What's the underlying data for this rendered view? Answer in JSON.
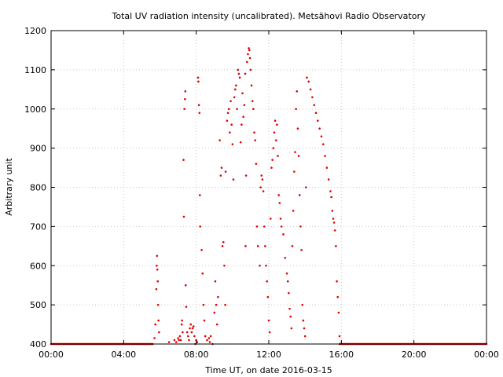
{
  "chart_data": {
    "type": "scatter",
    "title": "Total UV radiation intensity (uncalibrated). Metsähovi Radio Observatory",
    "xlabel": "Time UT, on date 2016-03-15",
    "ylabel": "Arbitrary unit",
    "xlim": [
      0,
      24
    ],
    "ylim": [
      400,
      1200
    ],
    "x_ticks": [
      0,
      4,
      8,
      12,
      16,
      20,
      24
    ],
    "x_tick_labels": [
      "00:00",
      "04:00",
      "08:00",
      "12:00",
      "16:00",
      "20:00",
      "00:00"
    ],
    "y_ticks": [
      400,
      500,
      600,
      700,
      800,
      900,
      1000,
      1100,
      1200
    ],
    "y_tick_labels": [
      "400",
      "500",
      "600",
      "700",
      "800",
      "900",
      "1000",
      "1100",
      "1200"
    ],
    "grid": true,
    "marker_color": "#e00000",
    "series": [
      {
        "points": [
          [
            0.0,
            400
          ],
          [
            5.6,
            400
          ],
          [
            15.9,
            400
          ],
          [
            24.0,
            400
          ],
          [
            5.7,
            415
          ],
          [
            5.75,
            450
          ],
          [
            5.8,
            540
          ],
          [
            5.82,
            600
          ],
          [
            5.84,
            625
          ],
          [
            5.86,
            590
          ],
          [
            5.88,
            560
          ],
          [
            5.9,
            500
          ],
          [
            5.92,
            460
          ],
          [
            5.95,
            430
          ],
          [
            6.5,
            405
          ],
          [
            6.8,
            410
          ],
          [
            6.9,
            405
          ],
          [
            7.0,
            415
          ],
          [
            7.05,
            410
          ],
          [
            7.1,
            420
          ],
          [
            7.15,
            410
          ],
          [
            7.2,
            450
          ],
          [
            7.22,
            460
          ],
          [
            7.25,
            430
          ],
          [
            7.3,
            870
          ],
          [
            7.32,
            725
          ],
          [
            7.35,
            1000
          ],
          [
            7.38,
            1025
          ],
          [
            7.4,
            1045
          ],
          [
            7.42,
            550
          ],
          [
            7.45,
            495
          ],
          [
            7.5,
            430
          ],
          [
            7.55,
            420
          ],
          [
            7.6,
            410
          ],
          [
            7.65,
            440
          ],
          [
            7.7,
            450
          ],
          [
            7.75,
            430
          ],
          [
            7.8,
            440
          ],
          [
            7.85,
            445
          ],
          [
            7.9,
            420
          ],
          [
            7.95,
            400
          ],
          [
            8.0,
            410
          ],
          [
            8.05,
            405
          ],
          [
            8.1,
            1080
          ],
          [
            8.12,
            1070
          ],
          [
            8.15,
            1010
          ],
          [
            8.18,
            990
          ],
          [
            8.2,
            780
          ],
          [
            8.22,
            700
          ],
          [
            8.3,
            640
          ],
          [
            8.35,
            580
          ],
          [
            8.4,
            500
          ],
          [
            8.45,
            460
          ],
          [
            8.5,
            420
          ],
          [
            8.6,
            410
          ],
          [
            8.7,
            415
          ],
          [
            8.75,
            405
          ],
          [
            8.8,
            420
          ],
          [
            8.9,
            400
          ],
          [
            9.0,
            480
          ],
          [
            9.05,
            560
          ],
          [
            9.1,
            500
          ],
          [
            9.15,
            450
          ],
          [
            9.2,
            520
          ],
          [
            9.3,
            920
          ],
          [
            9.35,
            830
          ],
          [
            9.4,
            850
          ],
          [
            9.45,
            650
          ],
          [
            9.5,
            660
          ],
          [
            9.55,
            600
          ],
          [
            9.6,
            500
          ],
          [
            9.62,
            840
          ],
          [
            9.7,
            970
          ],
          [
            9.75,
            990
          ],
          [
            9.8,
            1000
          ],
          [
            9.85,
            940
          ],
          [
            9.9,
            1020
          ],
          [
            9.95,
            960
          ],
          [
            10.0,
            910
          ],
          [
            10.05,
            820
          ],
          [
            10.1,
            1030
          ],
          [
            10.15,
            1050
          ],
          [
            10.2,
            1060
          ],
          [
            10.25,
            1000
          ],
          [
            10.3,
            1100
          ],
          [
            10.35,
            1090
          ],
          [
            10.4,
            1080
          ],
          [
            10.45,
            915
          ],
          [
            10.5,
            960
          ],
          [
            10.55,
            1040
          ],
          [
            10.6,
            980
          ],
          [
            10.65,
            1010
          ],
          [
            10.7,
            1090
          ],
          [
            10.72,
            650
          ],
          [
            10.75,
            830
          ],
          [
            10.8,
            1120
          ],
          [
            10.85,
            1140
          ],
          [
            10.9,
            1155
          ],
          [
            10.93,
            1150
          ],
          [
            10.96,
            1130
          ],
          [
            11.0,
            1100
          ],
          [
            11.05,
            1060
          ],
          [
            11.1,
            1020
          ],
          [
            11.15,
            1000
          ],
          [
            11.2,
            940
          ],
          [
            11.25,
            920
          ],
          [
            11.3,
            860
          ],
          [
            11.35,
            700
          ],
          [
            11.4,
            650
          ],
          [
            11.5,
            600
          ],
          [
            11.55,
            800
          ],
          [
            11.6,
            830
          ],
          [
            11.65,
            820
          ],
          [
            11.7,
            790
          ],
          [
            11.75,
            700
          ],
          [
            11.8,
            650
          ],
          [
            11.85,
            600
          ],
          [
            11.9,
            560
          ],
          [
            11.95,
            520
          ],
          [
            12.0,
            460
          ],
          [
            12.05,
            430
          ],
          [
            12.1,
            720
          ],
          [
            12.15,
            850
          ],
          [
            12.2,
            870
          ],
          [
            12.25,
            900
          ],
          [
            12.3,
            940
          ],
          [
            12.35,
            970
          ],
          [
            12.4,
            920
          ],
          [
            12.45,
            960
          ],
          [
            12.5,
            880
          ],
          [
            12.55,
            780
          ],
          [
            12.6,
            760
          ],
          [
            12.65,
            720
          ],
          [
            12.7,
            700
          ],
          [
            12.8,
            680
          ],
          [
            12.9,
            620
          ],
          [
            13.0,
            580
          ],
          [
            13.05,
            560
          ],
          [
            13.1,
            530
          ],
          [
            13.15,
            490
          ],
          [
            13.2,
            470
          ],
          [
            13.25,
            440
          ],
          [
            13.3,
            650
          ],
          [
            13.35,
            740
          ],
          [
            13.4,
            840
          ],
          [
            13.45,
            890
          ],
          [
            13.5,
            1000
          ],
          [
            13.55,
            1045
          ],
          [
            13.6,
            950
          ],
          [
            13.65,
            880
          ],
          [
            13.7,
            780
          ],
          [
            13.75,
            700
          ],
          [
            13.8,
            640
          ],
          [
            13.85,
            500
          ],
          [
            13.9,
            460
          ],
          [
            13.95,
            440
          ],
          [
            14.0,
            420
          ],
          [
            14.05,
            800
          ],
          [
            14.1,
            1080
          ],
          [
            14.2,
            1070
          ],
          [
            14.3,
            1050
          ],
          [
            14.4,
            1030
          ],
          [
            14.5,
            1010
          ],
          [
            14.6,
            990
          ],
          [
            14.7,
            970
          ],
          [
            14.8,
            950
          ],
          [
            14.9,
            930
          ],
          [
            15.0,
            910
          ],
          [
            15.1,
            880
          ],
          [
            15.2,
            850
          ],
          [
            15.3,
            820
          ],
          [
            15.4,
            790
          ],
          [
            15.45,
            775
          ],
          [
            15.5,
            740
          ],
          [
            15.55,
            720
          ],
          [
            15.6,
            710
          ],
          [
            15.65,
            690
          ],
          [
            15.7,
            650
          ],
          [
            15.75,
            560
          ],
          [
            15.8,
            520
          ],
          [
            15.85,
            480
          ],
          [
            15.9,
            420
          ]
        ]
      }
    ]
  }
}
